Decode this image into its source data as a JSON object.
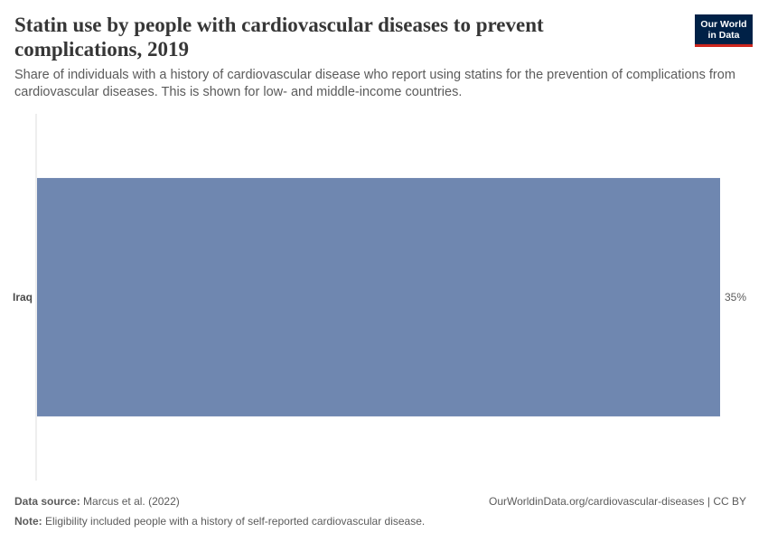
{
  "header": {
    "title": "Statin use by people with cardiovascular diseases to prevent complications, 2019",
    "subtitle": "Share of individuals with a history of cardiovascular disease who report using statins for the prevention of complications from cardiovascular diseases. This is shown for low- and middle-income countries.",
    "logo_line1": "Our World",
    "logo_line2": "in Data"
  },
  "chart_data": {
    "type": "bar",
    "orientation": "horizontal",
    "title": "Statin use by people with cardiovascular diseases to prevent complications, 2019",
    "categories": [
      "Iraq"
    ],
    "values": [
      35
    ],
    "value_labels": [
      "35%"
    ],
    "unit": "%",
    "xlim": [
      0,
      35
    ],
    "grid": false,
    "bar_color": "#6f87b0"
  },
  "footer": {
    "source_label": "Data source:",
    "source_text": "Marcus et al. (2022)",
    "url_text": "OurWorldinData.org/cardiovascular-diseases | CC BY",
    "note_label": "Note:",
    "note_text": "Eligibility included people with a history of self-reported cardiovascular disease."
  }
}
